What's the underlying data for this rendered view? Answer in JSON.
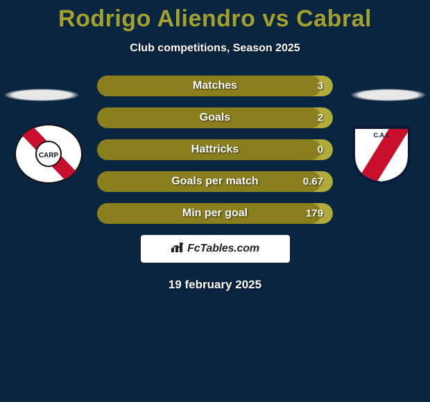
{
  "title": "Rodrigo Aliendro vs Cabral",
  "title_color": "#a3a02d",
  "subtitle": "Club competitions, Season 2025",
  "date": "19 february 2025",
  "background_color": "#0a2540",
  "bar_left_color": "#8a7f1f",
  "bar_right_color": "#b0ab3a",
  "stats": [
    {
      "label": "Matches",
      "value": "3",
      "fill_pct": 95
    },
    {
      "label": "Goals",
      "value": "2",
      "fill_pct": 95
    },
    {
      "label": "Hattricks",
      "value": "0",
      "fill_pct": 95
    },
    {
      "label": "Goals per match",
      "value": "0.67",
      "fill_pct": 95
    },
    {
      "label": "Min per goal",
      "value": "179",
      "fill_pct": 95
    }
  ],
  "brand": {
    "icon": "bars-icon",
    "text": "FcTables.com",
    "bg": "#ffffff",
    "text_color": "#222222"
  },
  "clubs": {
    "left": {
      "name": "river-plate",
      "stripe": "#c8102e",
      "bg": "#ffffff"
    },
    "right": {
      "name": "independiente",
      "stripe": "#c8102e",
      "bg": "#ffffff"
    }
  }
}
